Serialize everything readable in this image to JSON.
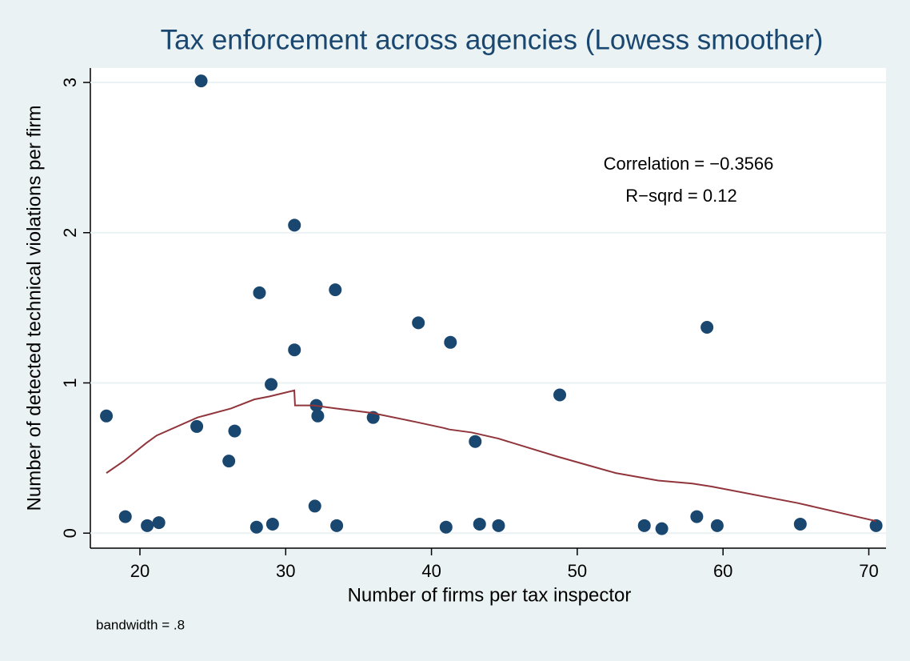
{
  "chart_data": {
    "type": "scatter",
    "title": "Tax enforcement across agencies (Lowess smoother)",
    "x_label": "Number of firms per tax inspector",
    "y_label": "Number of detected technical violations per firm",
    "annotations": [
      "Correlation = −0.3566",
      "R−sqrd = 0.12"
    ],
    "note": "bandwidth = .8",
    "xlim": [
      16.6,
      71.18
    ],
    "ylim": [
      -0.1,
      3.096
    ],
    "xticks": [
      20,
      30,
      40,
      50,
      60,
      70
    ],
    "yticks": [
      0,
      1,
      2,
      3
    ],
    "grid": true,
    "series": [
      {
        "mode": "markers",
        "color": "#1a476f",
        "x": [
          17.7,
          19,
          20.5,
          21.3,
          23.9,
          24.2,
          26.1,
          26.5,
          28,
          28.2,
          29,
          29.1,
          30.6,
          30.6,
          32,
          32.1,
          32.2,
          33.4,
          33.5,
          36,
          39.1,
          41,
          41.3,
          43,
          43.3,
          44.6,
          48.8,
          54.6,
          55.8,
          58.2,
          58.9,
          59.6,
          65.3,
          70.5
        ],
        "values": [
          0.78,
          0.11,
          0.05,
          0.07,
          0.71,
          3.01,
          0.48,
          0.68,
          0.04,
          1.6,
          0.99,
          0.06,
          2.05,
          1.22,
          0.18,
          0.85,
          0.78,
          1.62,
          0.05,
          0.77,
          1.4,
          0.04,
          1.27,
          0.61,
          0.06,
          0.05,
          0.92,
          0.05,
          0.03,
          0.11,
          1.37,
          0.05,
          0.06,
          0.05
        ]
      },
      {
        "mode": "line",
        "color": "#90353b",
        "x": [
          17.7,
          18.9,
          20.44,
          21.15,
          23.95,
          26.25,
          27.84,
          28.89,
          30.59,
          30.64,
          31.9,
          33.44,
          35.91,
          38.93,
          40.84,
          41.23,
          42.76,
          44.57,
          48.63,
          52.64,
          55.55,
          57.9,
          59.22,
          65.14,
          70.5
        ],
        "values": [
          0.4,
          0.48,
          0.6,
          0.65,
          0.77,
          0.83,
          0.89,
          0.91,
          0.95,
          0.85,
          0.85,
          0.83,
          0.8,
          0.74,
          0.7,
          0.69,
          0.67,
          0.63,
          0.51,
          0.4,
          0.35,
          0.33,
          0.31,
          0.2,
          0.08
        ]
      }
    ]
  }
}
